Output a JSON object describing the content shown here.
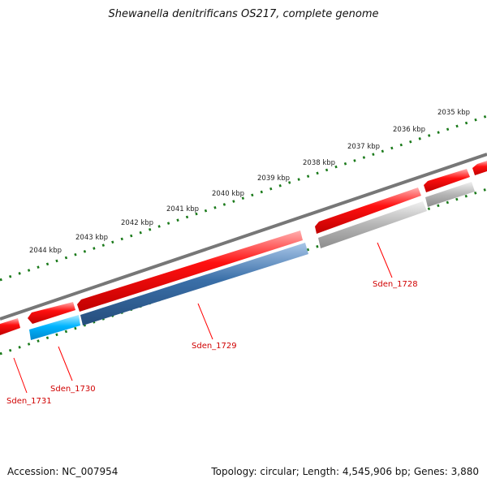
{
  "title": "Shewanella denitrificans OS217, complete genome",
  "footer": {
    "accession": "Accession: NC_007954",
    "topology": "Topology: circular; Length: 4,545,906 bp; Genes: 3,880"
  },
  "scale_labels": [
    "2035 kbp",
    "2036 kbp",
    "2037 kbp",
    "2038 kbp",
    "2039 kbp",
    "2040 kbp",
    "2041 kbp",
    "2042 kbp",
    "2043 kbp",
    "2044 kbp"
  ],
  "gene_labels": [
    "Sden_1728",
    "Sden_1729",
    "Sden_1730",
    "Sden_1731"
  ],
  "colors": {
    "forward_strand_feature": "#ff0000",
    "reverse_gene_sden_1729": "#3a6fa8",
    "reverse_gene_sden_1730": "#00b4ff",
    "reverse_gene_sden_1728": "#b5b5b5",
    "backbone": "#777777",
    "tick_marks": "#1a7a1a",
    "gene_label_text": "#d00000"
  }
}
